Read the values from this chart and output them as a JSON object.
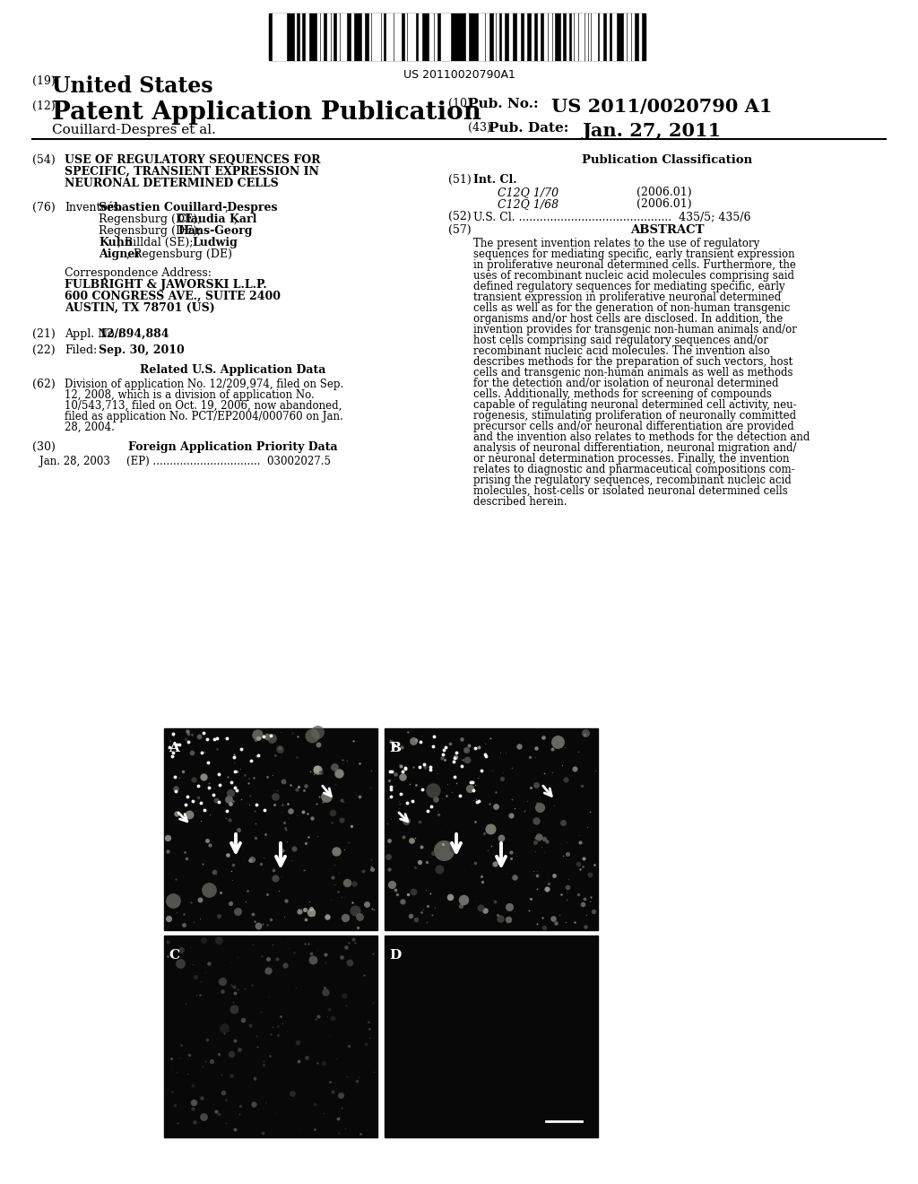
{
  "bg_color": "#ffffff",
  "barcode_text": "US 20110020790A1",
  "header": {
    "num19": "(19)",
    "united_states": "United States",
    "num12": "(12)",
    "patent_app": "Patent Application Publication",
    "num10": "(10)",
    "pub_no_label": "Pub. No.:",
    "pub_no_value": "US 2011/0020790 A1",
    "inventors_label": "Couillard-Despres et al.",
    "num43": "(43)",
    "pub_date_label": "Pub. Date:",
    "pub_date_value": "Jan. 27, 2011"
  },
  "left_col": {
    "title_lines": [
      "USE OF REGULATORY SEQUENCES FOR",
      "SPECIFIC, TRANSIENT EXPRESSION IN",
      "NEURONAL DETERMINED CELLS"
    ],
    "correspondence_lines": [
      "FULBRIGHT & JAWORSKI L.L.P.",
      "600 CONGRESS AVE., SUITE 2400",
      "AUSTIN, TX 78701 (US)"
    ],
    "appl_no_value": "12/894,884",
    "filed_value": "Sep. 30, 2010",
    "related_header": "Related U.S. Application Data",
    "div_lines": [
      "Division of application No. 12/209,974, filed on Sep.",
      "12, 2008, which is a division of application No.",
      "10/543,713, filed on Oct. 19, 2006, now abandoned,",
      "filed as application No. PCT/EP2004/000760 on Jan.",
      "28, 2004."
    ],
    "foreign_header": "Foreign Application Priority Data",
    "foreign_line": "Jan. 28, 2003     (EP) ................................  03002027.5"
  },
  "right_col": {
    "pub_class_header": "Publication Classification",
    "class1_name": "C12Q 1/70",
    "class1_year": "(2006.01)",
    "class2_name": "C12Q 1/68",
    "class2_year": "(2006.01)",
    "us_cl_line": "U.S. Cl. ............................................  435/5; 435/6",
    "abstract_header": "ABSTRACT",
    "abstract_lines": [
      "The present invention relates to the use of regulatory",
      "sequences for mediating specific, early transient expression",
      "in proliferative neuronal determined cells. Furthermore, the",
      "uses of recombinant nucleic acid molecules comprising said",
      "defined regulatory sequences for mediating specific, early",
      "transient expression in proliferative neuronal determined",
      "cells as well as for the generation of non-human transgenic",
      "organisms and/or host cells are disclosed. In addition, the",
      "invention provides for transgenic non-human animals and/or",
      "host cells comprising said regulatory sequences and/or",
      "recombinant nucleic acid molecules. The invention also",
      "describes methods for the preparation of such vectors, host",
      "cells and transgenic non-human animals as well as methods",
      "for the detection and/or isolation of neuronal determined",
      "cells. Additionally, methods for screening of compounds",
      "capable of regulating neuronal determined cell activity, neu-",
      "rogenesis, stimulating proliferation of neuronally committed",
      "precursor cells and/or neuronal differentiation are provided",
      "and the invention also relates to methods for the detection and",
      "analysis of neuronal differentiation, neuronal migration and/",
      "or neuronal determination processes. Finally, the invention",
      "relates to diagnostic and pharmaceutical compositions com-",
      "prising the regulatory sequences, recombinant nucleic acid",
      "molecules, host-cells or isolated neuronal determined cells",
      "described herein."
    ]
  }
}
